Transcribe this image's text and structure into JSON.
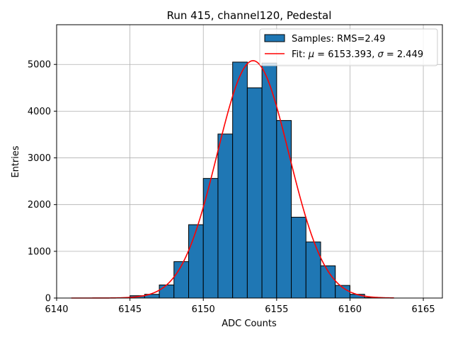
{
  "chart_data": {
    "type": "bar",
    "title": "Run 415, channel120, Pedestal",
    "xlabel": "ADC Counts",
    "ylabel": "Entries",
    "xlim": [
      6140,
      6166.3
    ],
    "ylim": [
      0,
      5850
    ],
    "xticks": [
      6140,
      6145,
      6150,
      6155,
      6160,
      6165
    ],
    "yticks": [
      0,
      1000,
      2000,
      3000,
      4000,
      5000
    ],
    "grid": true,
    "legend_position": "top-right",
    "bin_edges": [
      6145,
      6146,
      6147,
      6148,
      6149,
      6150,
      6151,
      6152,
      6153,
      6154,
      6155,
      6156,
      6157,
      6158,
      6159,
      6160,
      6161,
      6162
    ],
    "counts": [
      50,
      80,
      280,
      780,
      1570,
      2560,
      3510,
      5050,
      4500,
      5030,
      3800,
      1730,
      1200,
      690,
      270,
      80,
      10
    ],
    "histogram": {
      "name": "Samples: RMS=2.49",
      "color": "#1f77b4",
      "edgecolor": "#000000"
    },
    "fit": {
      "name": "Fit: μ = 6153.393, σ = 2.449",
      "color": "#ff0000",
      "mu": 6153.393,
      "sigma": 2.449,
      "amplitude": 5080,
      "x_range": [
        6141,
        6163
      ]
    },
    "legend": [
      {
        "type": "patch",
        "label": "Samples: RMS=2.49"
      },
      {
        "type": "line",
        "label_prefix": "Fit: ",
        "mu_symbol": "μ",
        "mu_text": " = 6153.393, ",
        "sigma_symbol": "σ",
        "sigma_text": " = 2.449"
      }
    ]
  }
}
